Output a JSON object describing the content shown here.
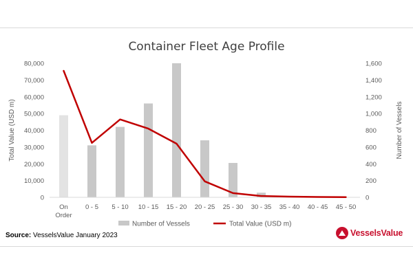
{
  "chart_data": {
    "type": "bar",
    "title": "Container Fleet Age Profile",
    "categories": [
      "On Order",
      "0 - 5",
      "5 - 10",
      "10 - 15",
      "15 - 20",
      "20 - 25",
      "25 - 30",
      "30 - 35",
      "35 - 40",
      "40 - 45",
      "45 - 50"
    ],
    "category_lines": [
      [
        "On",
        "Order"
      ],
      [
        "0 - 5"
      ],
      [
        "5 - 10"
      ],
      [
        "10 - 15"
      ],
      [
        "15 - 20"
      ],
      [
        "20 - 25"
      ],
      [
        "25 - 30"
      ],
      [
        "30 - 35"
      ],
      [
        "35 - 40"
      ],
      [
        "40 - 45"
      ],
      [
        "45 - 50"
      ]
    ],
    "series": [
      {
        "name": "Number of Vessels",
        "type": "bar",
        "axis": "right",
        "color": "#c8c8c8",
        "highlight_color": "#e3e3e3",
        "values": [
          980,
          620,
          840,
          1120,
          1600,
          680,
          410,
          55,
          10,
          5,
          2
        ]
      },
      {
        "name": "Total Value (USD m)",
        "type": "line",
        "axis": "left",
        "color": "#c00000",
        "values": [
          75500,
          32500,
          46500,
          41000,
          32000,
          9500,
          2500,
          800,
          400,
          200,
          100
        ]
      }
    ],
    "y_left": {
      "label": "Total Value (USD m)",
      "range": [
        0,
        80000
      ],
      "ticks": [
        "0",
        "10,000",
        "20,000",
        "30,000",
        "40,000",
        "50,000",
        "60,000",
        "70,000",
        "80,000"
      ]
    },
    "y_right": {
      "label": "Number of Vessels",
      "range": [
        0,
        1600
      ],
      "ticks": [
        "0",
        "200",
        "400",
        "600",
        "800",
        "1,000",
        "1,200",
        "1,400",
        "1,600"
      ]
    },
    "grid": false,
    "legend_position": "bottom"
  },
  "footer": {
    "source_label": "Source:",
    "source_text": " VesselsValue January 2023",
    "logo_text": "VesselsValue",
    "brand_color": "#c8102e"
  }
}
